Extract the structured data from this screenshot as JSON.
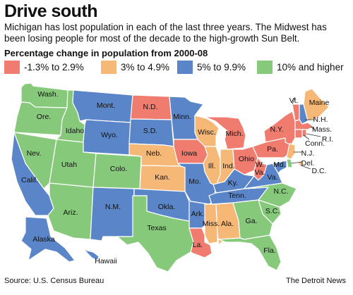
{
  "title": "Drive south",
  "subtitle": "Michigan has lost population in each of the last three years. The Midwest has been losing people for most of the decade to the high-growth Sun Belt.",
  "legend": {
    "title": "Percentage change in population from 2000-08",
    "items": [
      {
        "label": "-1.3% to 2.9%",
        "color": "#f07b6f"
      },
      {
        "label": "3% to 4.9%",
        "color": "#f6b877"
      },
      {
        "label": "5% to 9.9%",
        "color": "#5a86c9"
      },
      {
        "label": "10% and higher",
        "color": "#87c97b"
      }
    ]
  },
  "map": {
    "states": [
      {
        "label": "Wash.",
        "category": 3
      },
      {
        "label": "Ore.",
        "category": 3
      },
      {
        "label": "Idaho",
        "category": 3
      },
      {
        "label": "Mont.",
        "category": 2
      },
      {
        "label": "Wyo.",
        "category": 2
      },
      {
        "label": "N.D.",
        "category": 0
      },
      {
        "label": "S.D.",
        "category": 2
      },
      {
        "label": "Minn.",
        "category": 2
      },
      {
        "label": "Wisc.",
        "category": 1
      },
      {
        "label": "Mich.",
        "category": 0
      },
      {
        "label": "Nev.",
        "category": 3
      },
      {
        "label": "Utah",
        "category": 3
      },
      {
        "label": "Colo.",
        "category": 3
      },
      {
        "label": "Neb.",
        "category": 1
      },
      {
        "label": "Iowa",
        "category": 0
      },
      {
        "label": "Ill.",
        "category": 1
      },
      {
        "label": "Ind.",
        "category": 1
      },
      {
        "label": "Ohio",
        "category": 0
      },
      {
        "label": "Calif.",
        "category": 2
      },
      {
        "label": "Kan.",
        "category": 1
      },
      {
        "label": "Mo.",
        "category": 2
      },
      {
        "label": "Ky.",
        "category": 2
      },
      {
        "label": "W.\nVa.",
        "category": 0
      },
      {
        "label": "Va.",
        "category": 2
      },
      {
        "label": "Ariz.",
        "category": 3
      },
      {
        "label": "N.M.",
        "category": 2
      },
      {
        "label": "Okla.",
        "category": 2
      },
      {
        "label": "Ark.",
        "category": 2
      },
      {
        "label": "Tenn.",
        "category": 2
      },
      {
        "label": "N.C.",
        "category": 3
      },
      {
        "label": "S.C.",
        "category": 3
      },
      {
        "label": "Texas",
        "category": 3
      },
      {
        "label": "La.",
        "category": 0
      },
      {
        "label": "Miss.",
        "category": 1
      },
      {
        "label": "Ala.",
        "category": 1
      },
      {
        "label": "Ga.",
        "category": 3
      },
      {
        "label": "Fla.",
        "category": 3
      },
      {
        "label": "Alaska",
        "category": 2
      },
      {
        "label": "Hawaii",
        "category": 2
      },
      {
        "label": "N.Y.",
        "category": 0
      },
      {
        "label": "Pa.",
        "category": 0
      },
      {
        "label": "Vt.",
        "category": 0
      },
      {
        "label": "Maine",
        "category": 1
      },
      {
        "label": "N.H.",
        "category": 2
      },
      {
        "label": "Mass.",
        "category": 0
      },
      {
        "label": "Conn.",
        "category": 0
      },
      {
        "label": "R.I.",
        "category": 0
      },
      {
        "label": "N.J.",
        "category": 1
      },
      {
        "label": "Del.",
        "category": 3
      },
      {
        "label": "Md.",
        "category": 2
      },
      {
        "label": "D.C.",
        "category": 1
      }
    ]
  },
  "source": "Source: U.S. Census Bureau",
  "credit": "The Detroit News"
}
